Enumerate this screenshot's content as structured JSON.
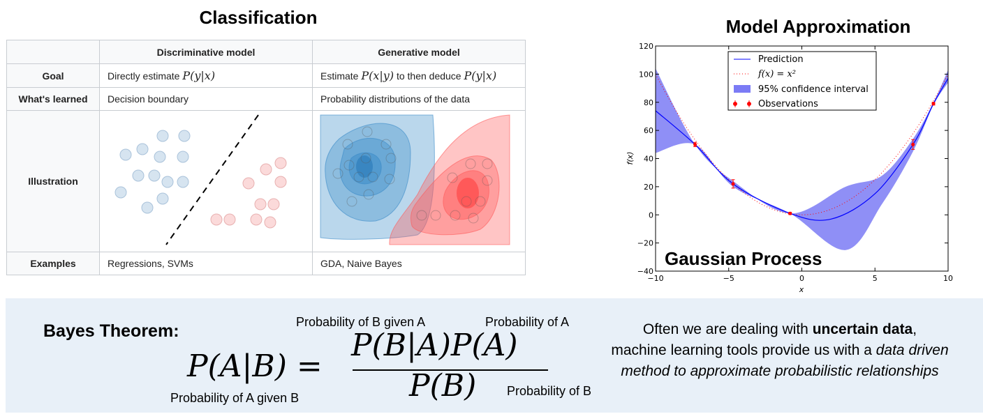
{
  "classification": {
    "title": "Classification",
    "columns": [
      "",
      "Discriminative model",
      "Generative model"
    ],
    "rows": {
      "goal": {
        "label": "Goal",
        "discriminative_text": "Directly estimate ",
        "discriminative_math": "P(y|x)",
        "generative_text": "Estimate ",
        "generative_math_1": "P(x|y)",
        "generative_mid": " to then deduce ",
        "generative_math_2": "P(y|x)"
      },
      "learned": {
        "label": "What's learned",
        "discriminative": "Decision boundary",
        "generative": "Probability distributions of the data"
      },
      "illustration": {
        "label": "Illustration"
      },
      "examples": {
        "label": "Examples",
        "discriminative": "Regressions, SVMs",
        "generative": "GDA, Naive Bayes"
      }
    },
    "colors": {
      "blue_dot": "#d6e4f0",
      "red_dot": "#fbdada",
      "blue_region": "#3a8bc8",
      "red_region": "#ff5a5a"
    }
  },
  "model_approx": {
    "title": "Model Approximation",
    "overlay_label": "Gaussian Process",
    "legend": [
      "Prediction",
      "f(x) = x²",
      "95% confidence interval",
      "Observations"
    ],
    "xlabel": "x",
    "ylabel": "f(x)",
    "xticks": [
      "−10",
      "−5",
      "0",
      "5",
      "10"
    ],
    "yticks": [
      "120",
      "100",
      "80",
      "60",
      "40",
      "20",
      "0",
      "−20",
      "−40"
    ],
    "colors": {
      "prediction": "#0000ff",
      "band": "#7b7bf5",
      "truth": "#ff0000",
      "obs": "#ff0000"
    }
  },
  "chart_data": {
    "type": "line",
    "xlim": [
      -10,
      10
    ],
    "ylim": [
      -40,
      120
    ],
    "grid": false,
    "legend_position": "top-center",
    "series": [
      {
        "name": "Prediction",
        "x": [
          -10,
          -7.3,
          -4.7,
          -0.8,
          2,
          5,
          7.6,
          9,
          10
        ],
        "y": [
          74,
          50,
          22,
          1,
          -3,
          15,
          50,
          79,
          97
        ]
      },
      {
        "name": "f(x) = x²",
        "x": [
          -10,
          -7.5,
          -5,
          -2.5,
          0,
          2.5,
          5,
          7.5,
          10
        ],
        "y": [
          100,
          56.25,
          25,
          6.25,
          0,
          6.25,
          25,
          56.25,
          100
        ]
      },
      {
        "name": "95% confidence interval",
        "x": [
          -10,
          -7.3,
          -4.7,
          -0.8,
          3,
          5.5,
          7.6,
          9,
          10
        ],
        "y_low": [
          44,
          50,
          20,
          1,
          -25,
          8,
          45,
          78,
          94
        ],
        "y_high": [
          104,
          50,
          24,
          1,
          20,
          28,
          54,
          80,
          103
        ]
      },
      {
        "name": "Observations",
        "x": [
          -7.3,
          -4.7,
          -0.8,
          7.6,
          9
        ],
        "y": [
          50,
          22,
          1,
          50,
          79
        ]
      }
    ]
  },
  "bayes": {
    "title": "Bayes Theorem:",
    "formula_lhs": "P(A|B) =",
    "numerator": "P(B|A)P(A)",
    "denominator": "P(B)",
    "ann_b_given_a": "Probability of B given A",
    "ann_a": "Probability of A",
    "ann_a_given_b": "Probability of A given B",
    "ann_b": "Probability of B",
    "desc": {
      "p1": "Often we are dealing with ",
      "p1_bold": "uncertain data",
      "p1_end": ",",
      "p2": "machine learning tools provide us with a ",
      "p2_italic": "data driven method to approximate probabilistic relationships"
    },
    "panel_color": "#e8f0f8"
  }
}
